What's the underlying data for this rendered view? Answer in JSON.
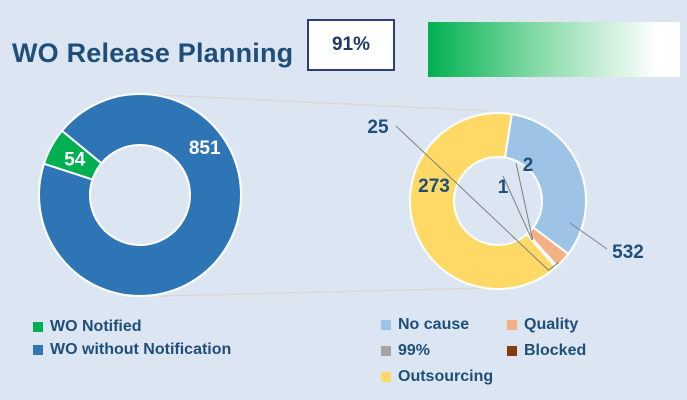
{
  "header": {
    "title": "WO Release Planning",
    "kpi_value": "91%",
    "progress_fraction": 0.91
  },
  "colors": {
    "notified": "#00b050",
    "without_notification": "#2e75b6",
    "no_cause": "#9dc3e6",
    "quality": "#f4b183",
    "pct99": "#a5a5a5",
    "blocked": "#843c0c",
    "outsourcing": "#ffd966",
    "label_dark": "#1f4e79",
    "connector": "#d9d9d9"
  },
  "chart_data": [
    {
      "type": "pie",
      "subtype": "doughnut",
      "categories": [
        "WO Notified",
        "WO without Notification"
      ],
      "values": [
        54,
        851
      ],
      "data_labels": [
        "54",
        "851"
      ]
    },
    {
      "type": "pie",
      "subtype": "doughnut",
      "categories": [
        "No cause",
        "Quality",
        "99%",
        "Blocked",
        "Outsourcing"
      ],
      "values": [
        273,
        25,
        2,
        1,
        532
      ],
      "data_labels": [
        "273",
        "25",
        "2",
        "1",
        "532"
      ]
    }
  ],
  "legend_left": [
    {
      "label": "WO Notified",
      "color_key": "notified"
    },
    {
      "label": "WO without Notification",
      "color_key": "without_notification"
    }
  ],
  "legend_right": [
    {
      "label": "No cause",
      "color_key": "no_cause"
    },
    {
      "label": "Quality",
      "color_key": "quality"
    },
    {
      "label": "99%",
      "color_key": "pct99"
    },
    {
      "label": "Blocked",
      "color_key": "blocked"
    },
    {
      "label": "Outsourcing",
      "color_key": "outsourcing"
    }
  ]
}
